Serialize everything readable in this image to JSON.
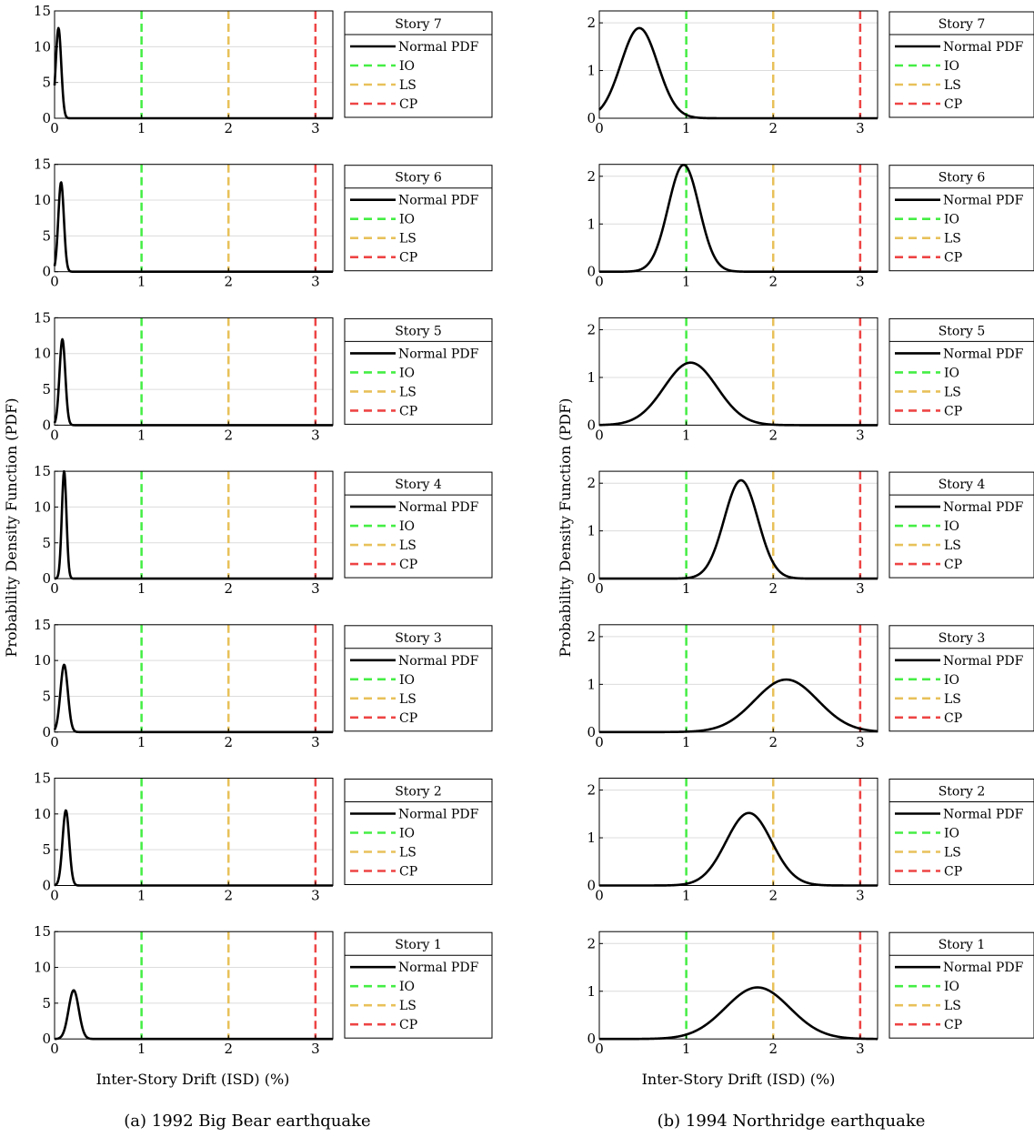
{
  "figure": {
    "ylabel": "Probability Density Function (PDF)",
    "xlabel": "Inter-Story Drift (ISD) (%)",
    "legend_items": [
      {
        "label": "Normal PDF",
        "color": "#000000",
        "dash": "solid"
      },
      {
        "label": "IO",
        "color": "#44ee44",
        "dash": "dashed"
      },
      {
        "label": "LS",
        "color": "#e8c15a",
        "dash": "dashed"
      },
      {
        "label": "CP",
        "color": "#ee4444",
        "dash": "dashed"
      }
    ]
  },
  "panels": [
    {
      "caption": "(a) 1992 Big Bear earthquake"
    },
    {
      "caption": "(b) 1994 Northridge earthquake"
    }
  ],
  "chart_data": [
    {
      "type": "line",
      "title": "(a) 1992 Big Bear earthquake",
      "xlabel": "Inter-Story Drift (ISD) (%)",
      "ylabel": "Probability Density Function (PDF)",
      "xlim": [
        0,
        3.2
      ],
      "ylim": [
        0,
        15
      ],
      "xticks": [
        0,
        1,
        2,
        3
      ],
      "yticks": [
        0,
        5,
        10,
        15
      ],
      "limit_states": [
        {
          "name": "IO",
          "x": 1,
          "color": "#44ee44"
        },
        {
          "name": "LS",
          "x": 2,
          "color": "#e8c15a"
        },
        {
          "name": "CP",
          "x": 3,
          "color": "#ee4444"
        }
      ],
      "series": [
        {
          "name": "Normal PDF",
          "story": "Story 7",
          "mean": 0.045,
          "peak": 12.6
        },
        {
          "name": "Normal PDF",
          "story": "Story 6",
          "mean": 0.075,
          "peak": 12.5
        },
        {
          "name": "Normal PDF",
          "story": "Story 5",
          "mean": 0.09,
          "peak": 12.0
        },
        {
          "name": "Normal PDF",
          "story": "Story 4",
          "mean": 0.11,
          "peak": 15.0
        },
        {
          "name": "Normal PDF",
          "story": "Story 3",
          "mean": 0.11,
          "peak": 9.4
        },
        {
          "name": "Normal PDF",
          "story": "Story 2",
          "mean": 0.13,
          "peak": 10.5
        },
        {
          "name": "Normal PDF",
          "story": "Story 1",
          "mean": 0.22,
          "peak": 6.8
        }
      ]
    },
    {
      "type": "line",
      "title": "(b) 1994 Northridge earthquake",
      "xlabel": "Inter-Story Drift (ISD) (%)",
      "ylabel": "Probability Density Function (PDF)",
      "xlim": [
        0,
        3.2
      ],
      "ylim": [
        0,
        2.25
      ],
      "xticks": [
        0,
        1,
        2,
        3
      ],
      "yticks": [
        0,
        1,
        2
      ],
      "limit_states": [
        {
          "name": "IO",
          "x": 1,
          "color": "#44ee44"
        },
        {
          "name": "LS",
          "x": 2,
          "color": "#e8c15a"
        },
        {
          "name": "CP",
          "x": 3,
          "color": "#ee4444"
        }
      ],
      "series": [
        {
          "name": "Normal PDF",
          "story": "Story 7",
          "mean": 0.46,
          "peak": 1.89
        },
        {
          "name": "Normal PDF",
          "story": "Story 6",
          "mean": 0.97,
          "peak": 2.24
        },
        {
          "name": "Normal PDF",
          "story": "Story 5",
          "mean": 1.05,
          "peak": 1.31
        },
        {
          "name": "Normal PDF",
          "story": "Story 4",
          "mean": 1.63,
          "peak": 2.06
        },
        {
          "name": "Normal PDF",
          "story": "Story 3",
          "mean": 2.15,
          "peak": 1.1
        },
        {
          "name": "Normal PDF",
          "story": "Story 2",
          "mean": 1.72,
          "peak": 1.52
        },
        {
          "name": "Normal PDF",
          "story": "Story 1",
          "mean": 1.82,
          "peak": 1.08
        }
      ]
    }
  ]
}
